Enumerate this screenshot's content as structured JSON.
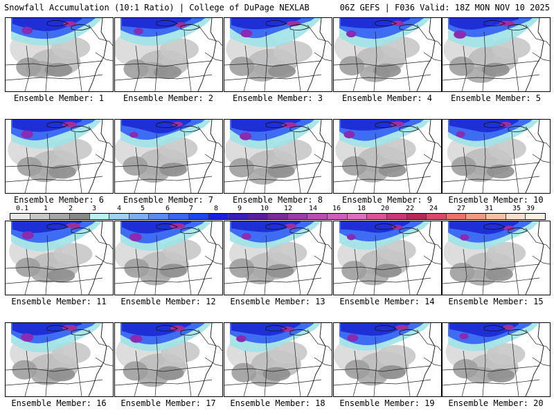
{
  "header": {
    "left_title": "Snowfall Accumulation (10:1 Ratio) | College of DuPage NEXLAB",
    "right_title": "06Z GEFS | F036 Valid: 18Z MON NOV 10 2025"
  },
  "members": [
    {
      "label": "Ensemble Member: 1",
      "intensity": 0.85
    },
    {
      "label": "Ensemble Member: 2",
      "intensity": 0.7
    },
    {
      "label": "Ensemble Member: 3",
      "intensity": 0.9
    },
    {
      "label": "Ensemble Member: 4",
      "intensity": 0.75
    },
    {
      "label": "Ensemble Member: 5",
      "intensity": 1.0
    },
    {
      "label": "Ensemble Member: 6",
      "intensity": 0.95
    },
    {
      "label": "Ensemble Member: 7",
      "intensity": 0.6
    },
    {
      "label": "Ensemble Member: 8",
      "intensity": 0.95
    },
    {
      "label": "Ensemble Member: 9",
      "intensity": 0.85
    },
    {
      "label": "Ensemble Member: 10",
      "intensity": 0.65
    },
    {
      "label": "Ensemble Member: 11",
      "intensity": 0.95
    },
    {
      "label": "Ensemble Member: 12",
      "intensity": 1.0
    },
    {
      "label": "Ensemble Member: 13",
      "intensity": 0.7
    },
    {
      "label": "Ensemble Member: 14",
      "intensity": 0.6
    },
    {
      "label": "Ensemble Member: 15",
      "intensity": 0.65
    },
    {
      "label": "Ensemble Member: 16",
      "intensity": 1.0
    },
    {
      "label": "Ensemble Member: 17",
      "intensity": 0.95
    },
    {
      "label": "Ensemble Member: 18",
      "intensity": 0.75
    },
    {
      "label": "Ensemble Member: 19",
      "intensity": 0.85
    },
    {
      "label": "Ensemble Member: 20",
      "intensity": 0.65
    }
  ],
  "colorbar": {
    "ticks": [
      "0.1",
      "1",
      "2",
      "3",
      "4",
      "5",
      "6",
      "7",
      "8",
      "9",
      "10",
      "12",
      "14",
      "16",
      "18",
      "20",
      "22",
      "24",
      "27",
      "31",
      "35",
      "39"
    ],
    "colors": [
      "#e9e9e9",
      "#c8c8c8",
      "#a7a7a7",
      "#8a8a8a",
      "#b9f3f0",
      "#9fd2f4",
      "#7fb0f1",
      "#5d8cf2",
      "#3d66ef",
      "#2047ec",
      "#1a21d8",
      "#3a1fb8",
      "#5a1f9e",
      "#7b2b9e",
      "#9b3fa8",
      "#b84fb3",
      "#cf5fbb",
      "#df70bd",
      "#d8579a",
      "#c83b79",
      "#b52c5b",
      "#d94b6b",
      "#e8746d",
      "#f09c85",
      "#f7c2a6",
      "#fbe1cd",
      "#fdf1e4"
    ]
  }
}
